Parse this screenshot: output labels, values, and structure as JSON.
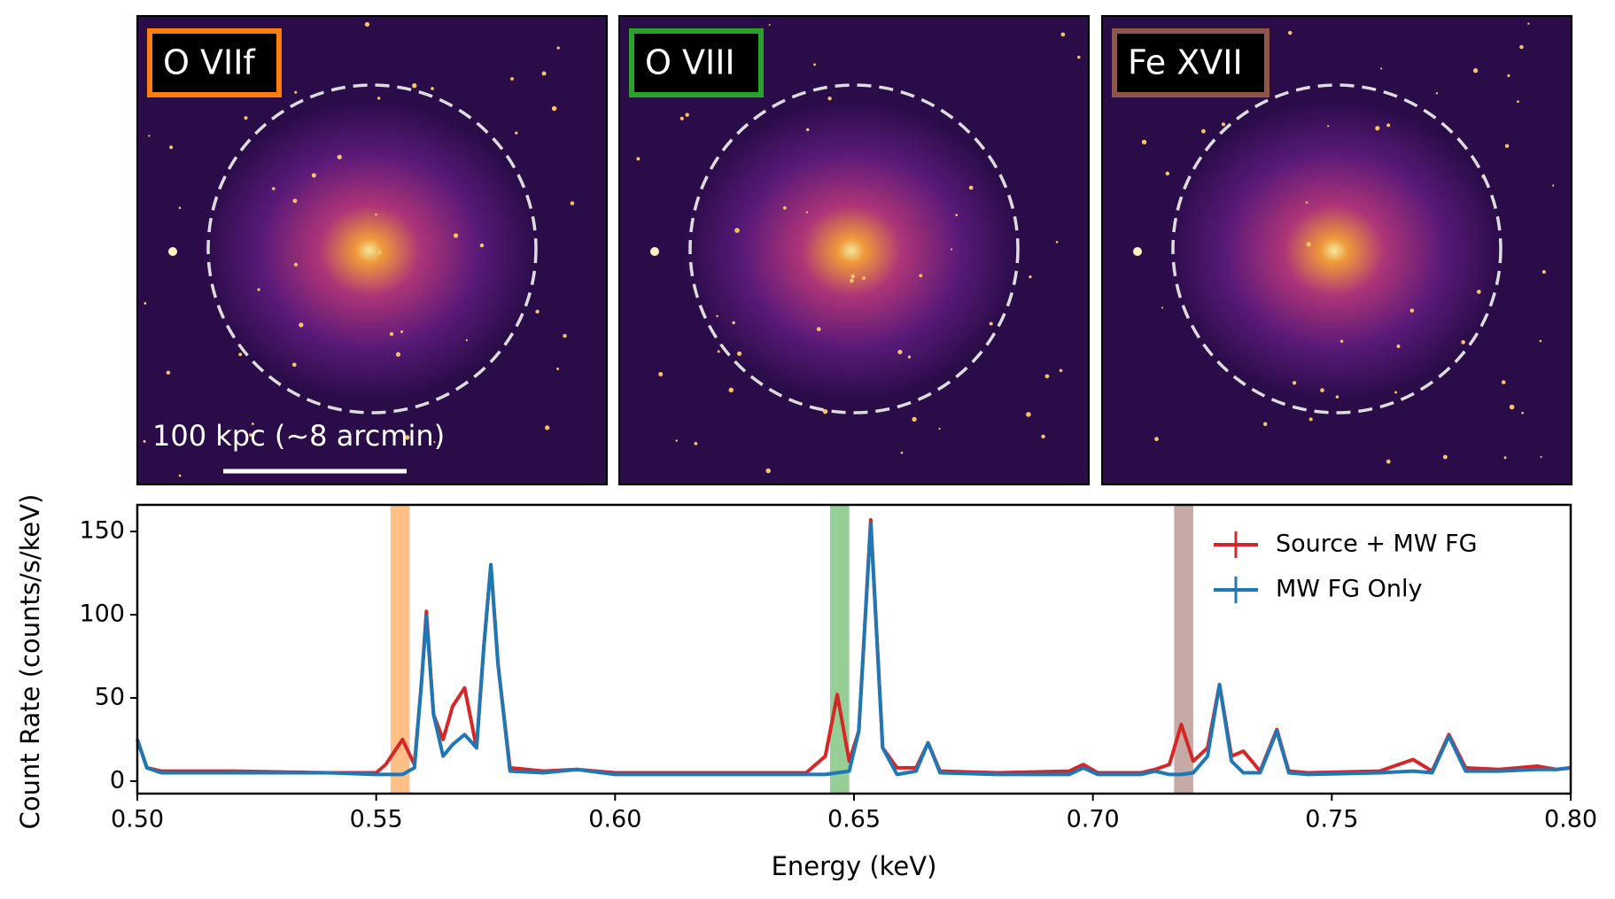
{
  "panels": [
    {
      "label": "O VIIf",
      "color": "#ff7f0e"
    },
    {
      "label": "O VIII",
      "color": "#2ca02c"
    },
    {
      "label": "Fe XVII",
      "color": "#8c564b"
    }
  ],
  "scale_bar": "100 kpc (~8 arcmin)",
  "chart_data": {
    "type": "line",
    "xlabel": "Energy (keV)",
    "ylabel": "Count Rate (counts/s/keV)",
    "xlim": [
      0.5,
      0.8
    ],
    "ylim": [
      -7.5,
      166
    ],
    "xticks": [
      {
        "value": 0.5,
        "label": "0.50"
      },
      0.55,
      {
        "value": 0.6,
        "label": "0.60"
      },
      0.65,
      {
        "value": 0.7,
        "label": "0.70"
      },
      0.75,
      {
        "value": 0.8,
        "label": "0.80"
      }
    ],
    "yticks": [
      0,
      50,
      100,
      150
    ],
    "legend": "upper right",
    "bands": [
      {
        "xlim": [
          0.553,
          0.557
        ],
        "color": "#ff7f0e"
      },
      {
        "xlim": [
          0.645,
          0.649
        ],
        "color": "#2ca02c"
      },
      {
        "xlim": [
          0.717,
          0.721
        ],
        "color": "#8c564b"
      }
    ],
    "x": [
      0.5,
      0.502,
      0.505,
      0.52,
      0.54,
      0.55,
      0.552,
      0.5555,
      0.558,
      0.5595,
      0.5605,
      0.562,
      0.564,
      0.566,
      0.5685,
      0.571,
      0.5725,
      0.574,
      0.5755,
      0.578,
      0.585,
      0.592,
      0.6,
      0.625,
      0.64,
      0.644,
      0.6465,
      0.649,
      0.651,
      0.6535,
      0.656,
      0.659,
      0.663,
      0.6655,
      0.668,
      0.68,
      0.695,
      0.698,
      0.701,
      0.71,
      0.713,
      0.716,
      0.7185,
      0.721,
      0.724,
      0.7265,
      0.729,
      0.7315,
      0.735,
      0.7385,
      0.741,
      0.745,
      0.76,
      0.767,
      0.771,
      0.7745,
      0.778,
      0.785,
      0.793,
      0.797,
      0.8
    ],
    "series": [
      {
        "name": "Source + MW FG",
        "color": "#d62728",
        "values": [
          25,
          8,
          6,
          6,
          5,
          5,
          10,
          25,
          10,
          60,
          102,
          40,
          25,
          45,
          56,
          20,
          80,
          130,
          70,
          8,
          6,
          7,
          5,
          5,
          5,
          15,
          52,
          12,
          30,
          157,
          20,
          8,
          8,
          23,
          6,
          5,
          6,
          10,
          5,
          5,
          7,
          10,
          34,
          12,
          20,
          58,
          15,
          18,
          6,
          31,
          6,
          5,
          6,
          13,
          6,
          28,
          8,
          7,
          9,
          7,
          8
        ]
      },
      {
        "name": "MW FG Only",
        "color": "#1f77b4",
        "values": [
          25,
          8,
          5,
          5,
          5,
          4,
          4,
          4,
          8,
          60,
          99,
          40,
          15,
          22,
          28,
          20,
          80,
          130,
          70,
          6,
          5,
          7,
          4,
          4,
          4,
          4,
          5,
          6,
          30,
          155,
          20,
          4,
          6,
          23,
          5,
          4,
          4,
          8,
          4,
          4,
          6,
          4,
          4,
          5,
          15,
          58,
          12,
          5,
          5,
          30,
          5,
          4,
          5,
          6,
          5,
          27,
          6,
          6,
          7,
          7,
          8
        ]
      }
    ]
  }
}
